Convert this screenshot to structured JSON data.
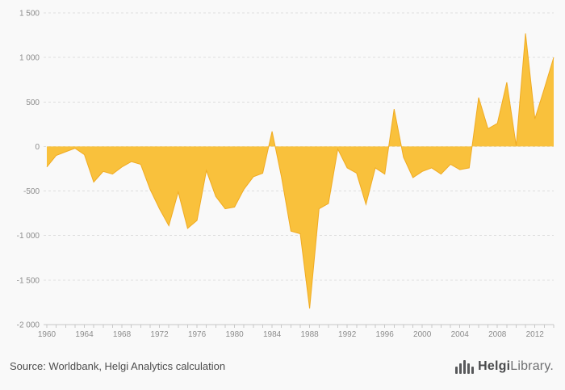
{
  "chart_data": {
    "type": "area",
    "title": "",
    "xlabel": "",
    "ylabel": "",
    "x": [
      1960,
      1961,
      1962,
      1963,
      1964,
      1965,
      1966,
      1967,
      1968,
      1969,
      1970,
      1971,
      1972,
      1973,
      1974,
      1975,
      1976,
      1977,
      1978,
      1979,
      1980,
      1981,
      1982,
      1983,
      1984,
      1985,
      1986,
      1987,
      1988,
      1989,
      1990,
      1991,
      1992,
      1993,
      1994,
      1995,
      1996,
      1997,
      1998,
      1999,
      2000,
      2001,
      2002,
      2003,
      2004,
      2005,
      2006,
      2007,
      2008,
      2009,
      2010,
      2011,
      2012,
      2013,
      2014
    ],
    "values": [
      -230,
      -100,
      -60,
      -20,
      -90,
      -400,
      -280,
      -310,
      -230,
      -170,
      -200,
      -480,
      -700,
      -890,
      -510,
      -920,
      -830,
      -270,
      -560,
      -700,
      -680,
      -480,
      -340,
      -300,
      170,
      -340,
      -950,
      -980,
      -1820,
      -700,
      -640,
      -30,
      -240,
      -300,
      -650,
      -240,
      -310,
      420,
      -120,
      -350,
      -280,
      -240,
      -310,
      -200,
      -260,
      -240,
      550,
      200,
      260,
      720,
      10,
      1270,
      310,
      650,
      1000
    ],
    "ylim": [
      -2000,
      1500
    ],
    "yticks": [
      1500,
      1000,
      500,
      0,
      -500,
      -1000,
      -1500,
      -2000
    ],
    "ytick_labels": [
      "1 500",
      "1 000",
      "500",
      "0",
      "-500",
      "-1 000",
      "-1 500",
      "-2 000"
    ],
    "xticks": [
      1960,
      1964,
      1968,
      1972,
      1976,
      1980,
      1984,
      1988,
      1992,
      1996,
      2000,
      2004,
      2008,
      2012
    ],
    "grid": true,
    "legend": "none",
    "baseline": 0,
    "colors": {
      "fill": "#f9c13c",
      "stroke": "#f0ab22",
      "grid": "#dedede",
      "axis": "#c8c8c8",
      "tick_text": "#8c8c8c",
      "background": "#f9f9f9"
    }
  },
  "footer": {
    "source": "Source: Worldbank, Helgi Analytics calculation",
    "brand": {
      "icon": "helgi-bars-logo-icon",
      "name_bold": "Helgi",
      "name_regular": "Library.",
      "color": "#58595b"
    }
  }
}
